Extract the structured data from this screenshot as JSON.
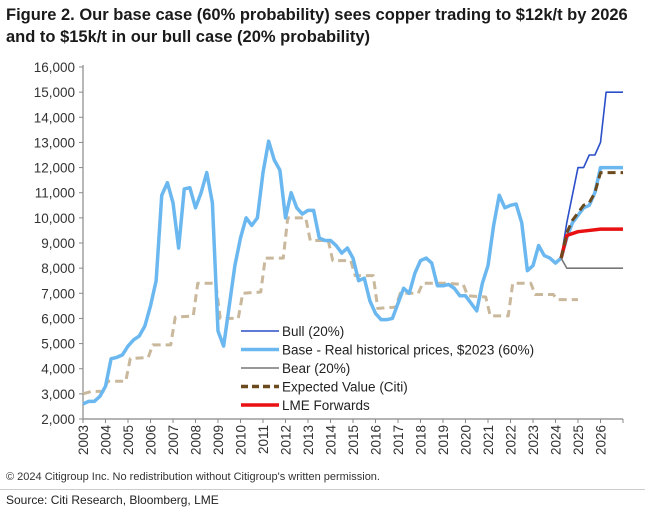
{
  "title": "Figure 2. Our base case (60% probability) sees copper trading to $12k/t by 2026 and to $15k/t in our bull case (20% probability)",
  "copyright": "© 2024 Citigroup Inc. No redistribution without Citigroup's written permission.",
  "source": "Source: Citi Research, Bloomberg, LME",
  "chart_data": {
    "type": "line",
    "title": "Figure 2. Our base case (60% probability) sees copper trading to $12k/t by 2026 and to $15k/t in our bull case (20% probability)",
    "xlabel": "",
    "ylabel": "",
    "xlim": [
      2003,
      2027
    ],
    "ylim": [
      2000,
      16000
    ],
    "yticks": [
      "2,000",
      "3,000",
      "4,000",
      "5,000",
      "6,000",
      "7,000",
      "8,000",
      "9,000",
      "10,000",
      "11,000",
      "12,000",
      "13,000",
      "14,000",
      "15,000",
      "16,000"
    ],
    "xticks": [
      "2003",
      "2004",
      "2005",
      "2006",
      "2007",
      "2008",
      "2009",
      "2010",
      "2011",
      "2012",
      "2013",
      "2014",
      "2015",
      "2016",
      "2017",
      "2018",
      "2019",
      "2020",
      "2021",
      "2022",
      "2023",
      "2024",
      "2025",
      "2026"
    ],
    "grid": false,
    "legend_position": "bottom-center",
    "series": [
      {
        "name": "Bull (20%)",
        "color": "#2a4fc9",
        "style": "solid",
        "points": [
          [
            2024.25,
            8400
          ],
          [
            2024.5,
            9800
          ],
          [
            2025.0,
            12000
          ],
          [
            2025.25,
            12000
          ],
          [
            2025.5,
            12500
          ],
          [
            2025.75,
            12500
          ],
          [
            2026.0,
            13000
          ],
          [
            2026.25,
            15000
          ],
          [
            2027,
            15000
          ]
        ]
      },
      {
        "name": "Base - Real historical prices, $2023 (60%)",
        "color": "#6bb8f0",
        "style": "solid",
        "points": [
          [
            2003,
            2600
          ],
          [
            2003.25,
            2700
          ],
          [
            2003.5,
            2700
          ],
          [
            2003.75,
            2900
          ],
          [
            2004,
            3300
          ],
          [
            2004.25,
            4400
          ],
          [
            2004.5,
            4450
          ],
          [
            2004.75,
            4550
          ],
          [
            2005,
            4900
          ],
          [
            2005.25,
            5150
          ],
          [
            2005.5,
            5300
          ],
          [
            2005.75,
            5700
          ],
          [
            2006,
            6500
          ],
          [
            2006.25,
            7500
          ],
          [
            2006.5,
            10900
          ],
          [
            2006.75,
            11400
          ],
          [
            2007,
            10600
          ],
          [
            2007.25,
            8800
          ],
          [
            2007.5,
            11150
          ],
          [
            2007.75,
            11200
          ],
          [
            2008,
            10400
          ],
          [
            2008.25,
            11000
          ],
          [
            2008.5,
            11800
          ],
          [
            2008.75,
            10600
          ],
          [
            2009,
            5500
          ],
          [
            2009.25,
            4900
          ],
          [
            2009.5,
            6500
          ],
          [
            2009.75,
            8100
          ],
          [
            2010,
            9200
          ],
          [
            2010.25,
            10000
          ],
          [
            2010.5,
            9700
          ],
          [
            2010.75,
            10000
          ],
          [
            2011,
            11800
          ],
          [
            2011.25,
            13050
          ],
          [
            2011.5,
            12300
          ],
          [
            2011.75,
            11900
          ],
          [
            2012,
            10000
          ],
          [
            2012.25,
            11000
          ],
          [
            2012.5,
            10400
          ],
          [
            2012.75,
            10150
          ],
          [
            2013,
            10300
          ],
          [
            2013.25,
            10300
          ],
          [
            2013.5,
            9200
          ],
          [
            2013.75,
            9100
          ],
          [
            2014,
            9100
          ],
          [
            2014.25,
            8900
          ],
          [
            2014.5,
            8600
          ],
          [
            2014.75,
            8800
          ],
          [
            2015,
            8400
          ],
          [
            2015.25,
            7500
          ],
          [
            2015.5,
            7600
          ],
          [
            2015.75,
            6700
          ],
          [
            2016,
            6200
          ],
          [
            2016.25,
            5950
          ],
          [
            2016.5,
            5950
          ],
          [
            2016.75,
            6000
          ],
          [
            2017,
            6600
          ],
          [
            2017.25,
            7200
          ],
          [
            2017.5,
            7000
          ],
          [
            2017.75,
            7800
          ],
          [
            2018,
            8300
          ],
          [
            2018.25,
            8400
          ],
          [
            2018.5,
            8200
          ],
          [
            2018.75,
            7300
          ],
          [
            2019,
            7300
          ],
          [
            2019.25,
            7350
          ],
          [
            2019.5,
            7200
          ],
          [
            2019.75,
            6900
          ],
          [
            2020,
            6900
          ],
          [
            2020.25,
            6600
          ],
          [
            2020.5,
            6300
          ],
          [
            2020.75,
            7400
          ],
          [
            2021,
            8100
          ],
          [
            2021.25,
            9700
          ],
          [
            2021.5,
            10900
          ],
          [
            2021.75,
            10400
          ],
          [
            2022,
            10500
          ],
          [
            2022.25,
            10550
          ],
          [
            2022.5,
            9800
          ],
          [
            2022.75,
            7900
          ],
          [
            2023,
            8100
          ],
          [
            2023.25,
            8900
          ],
          [
            2023.5,
            8500
          ],
          [
            2023.75,
            8400
          ],
          [
            2024,
            8200
          ],
          [
            2024.25,
            8400
          ],
          [
            2024.5,
            9200
          ],
          [
            2024.75,
            9800
          ],
          [
            2025,
            10100
          ],
          [
            2025.25,
            10400
          ],
          [
            2025.5,
            10500
          ],
          [
            2025.75,
            11000
          ],
          [
            2026,
            12000
          ],
          [
            2027,
            12000
          ]
        ]
      },
      {
        "name": "Bear (20%)",
        "color": "#777777",
        "style": "solid",
        "points": [
          [
            2024.25,
            8400
          ],
          [
            2024.5,
            8000
          ],
          [
            2027,
            8000
          ]
        ]
      },
      {
        "name": "Expected Value (Citi)",
        "color": "#6b4a1e",
        "style": "dashed",
        "points": [
          [
            2024.25,
            8400
          ],
          [
            2024.5,
            9400
          ],
          [
            2024.75,
            9900
          ],
          [
            2025,
            10200
          ],
          [
            2025.25,
            10500
          ],
          [
            2025.5,
            10600
          ],
          [
            2025.75,
            11000
          ],
          [
            2026,
            11800
          ],
          [
            2027,
            11800
          ]
        ]
      },
      {
        "name": "LME Forwards",
        "color": "#e81010",
        "style": "solid",
        "points": [
          [
            2024.25,
            8400
          ],
          [
            2024.5,
            9300
          ],
          [
            2025,
            9450
          ],
          [
            2025.5,
            9500
          ],
          [
            2026,
            9550
          ],
          [
            2027,
            9550
          ]
        ]
      },
      {
        "color": "#c9b89c",
        "style": "dashed",
        "points": [
          [
            2003,
            3000
          ],
          [
            2003.4,
            3100
          ],
          [
            2003.9,
            3100
          ],
          [
            2004.1,
            3500
          ],
          [
            2004.9,
            3500
          ],
          [
            2005.1,
            4400
          ],
          [
            2005.9,
            4450
          ],
          [
            2006.1,
            4950
          ],
          [
            2006.9,
            4950
          ],
          [
            2007.1,
            6050
          ],
          [
            2007.9,
            6100
          ],
          [
            2008.1,
            7400
          ],
          [
            2008.9,
            7400
          ],
          [
            2009.1,
            6000
          ],
          [
            2009.9,
            6000
          ],
          [
            2010.1,
            7000
          ],
          [
            2010.9,
            7050
          ],
          [
            2011.1,
            8400
          ],
          [
            2011.9,
            8400
          ],
          [
            2012.1,
            10000
          ],
          [
            2012.9,
            10000
          ],
          [
            2013.1,
            9100
          ],
          [
            2013.9,
            9100
          ],
          [
            2014.1,
            8300
          ],
          [
            2014.9,
            8300
          ],
          [
            2015.1,
            7700
          ],
          [
            2015.9,
            7700
          ],
          [
            2016.1,
            6400
          ],
          [
            2016.9,
            6450
          ],
          [
            2017.1,
            7000
          ],
          [
            2017.9,
            7000
          ],
          [
            2018.1,
            7400
          ],
          [
            2018.9,
            7400
          ],
          [
            2019.1,
            7400
          ],
          [
            2019.9,
            7350
          ],
          [
            2020.1,
            6900
          ],
          [
            2020.9,
            6850
          ],
          [
            2021.1,
            6100
          ],
          [
            2021.9,
            6100
          ],
          [
            2022.1,
            7400
          ],
          [
            2022.9,
            7400
          ],
          [
            2023.1,
            6950
          ],
          [
            2023.9,
            6950
          ],
          [
            2024.1,
            6750
          ],
          [
            2025,
            6750
          ]
        ]
      }
    ]
  }
}
